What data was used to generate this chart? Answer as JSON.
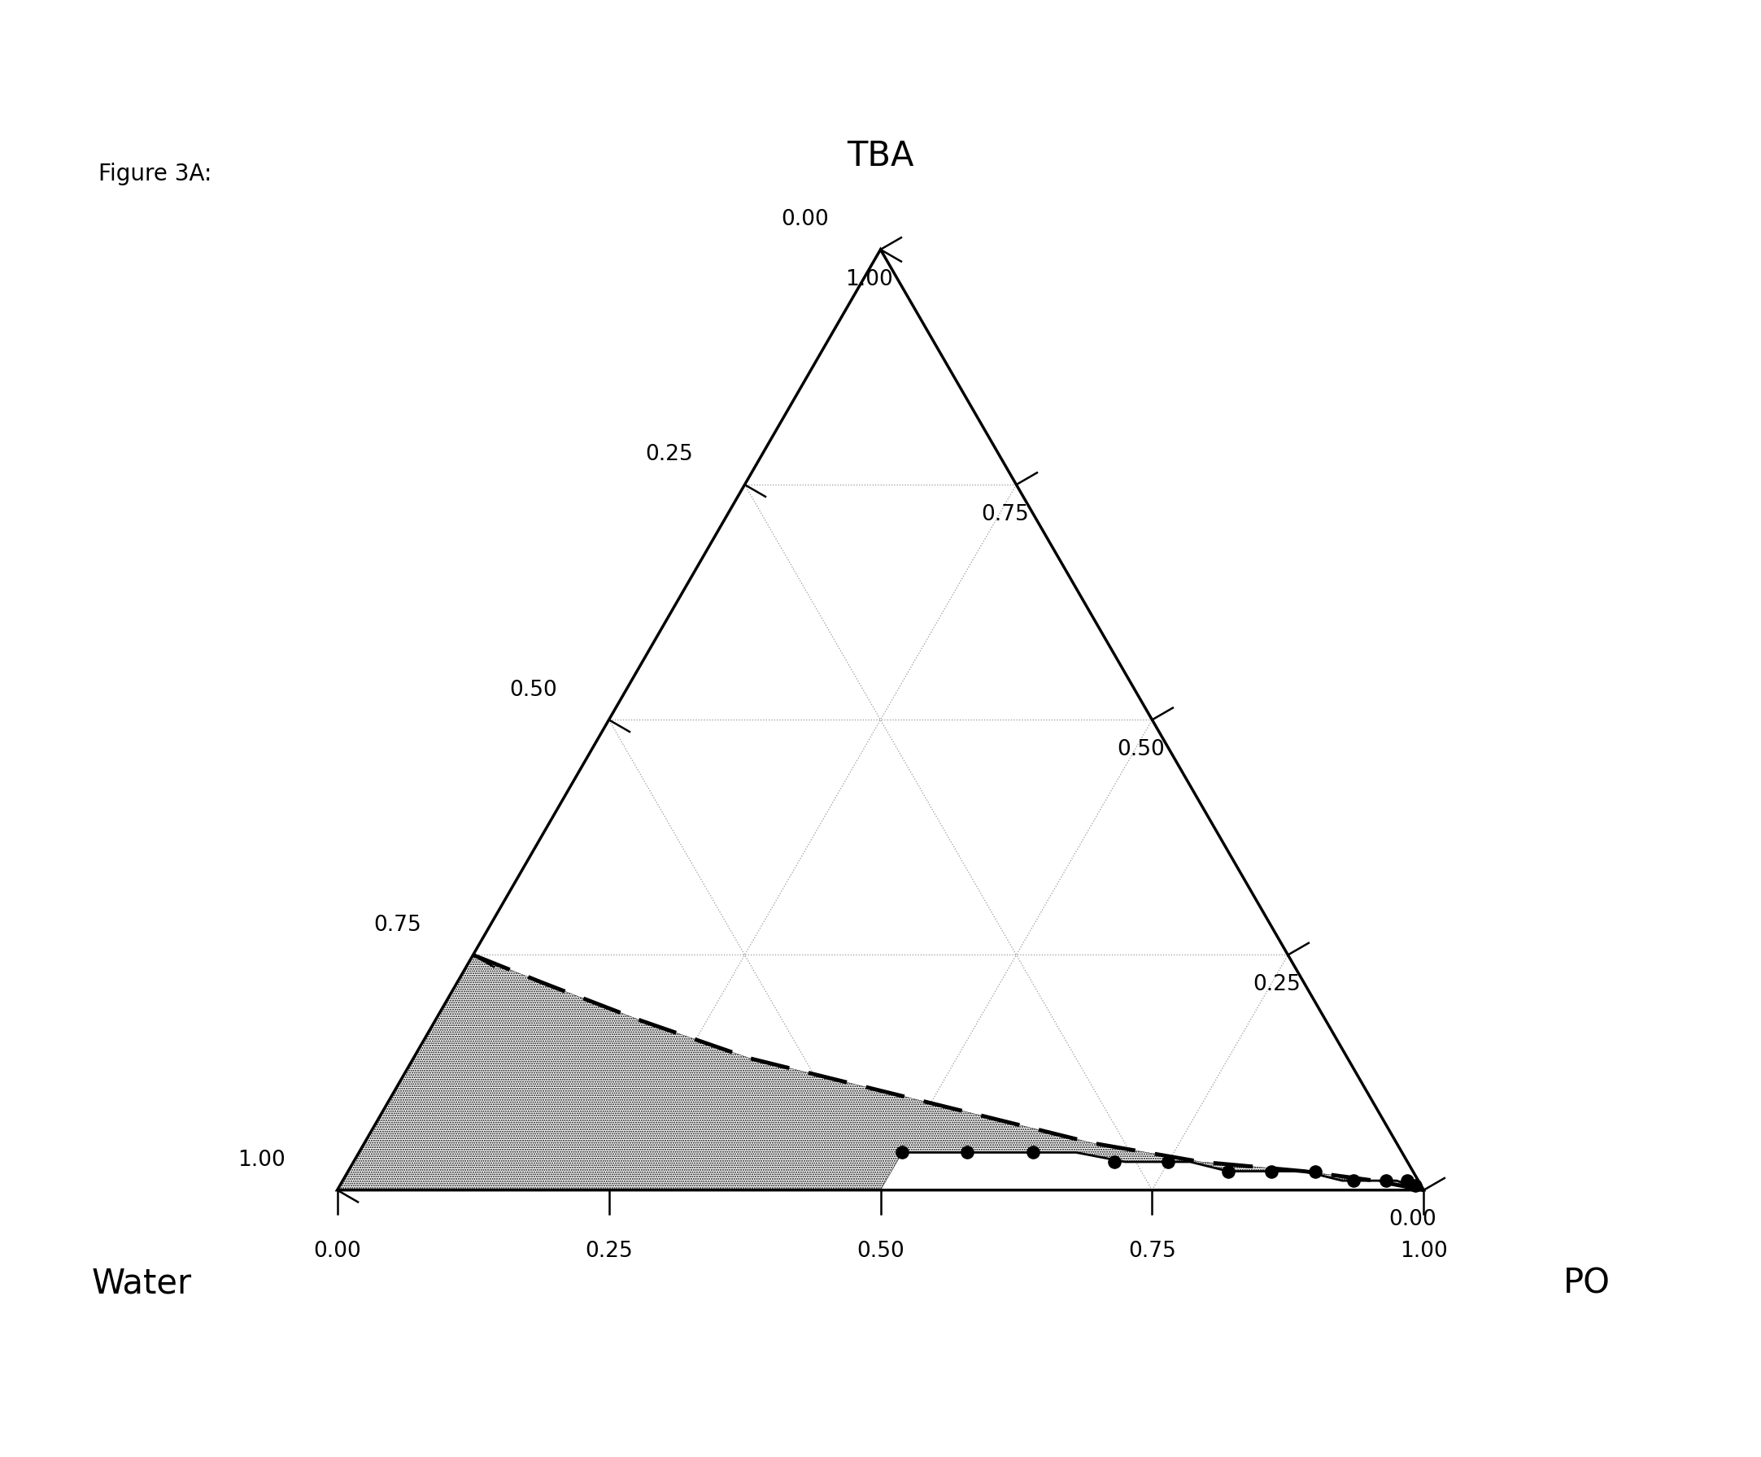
{
  "figure_label": "Figure 3A:",
  "corner_labels": {
    "top": "TBA",
    "left": "Water",
    "right": "PO"
  },
  "left_axis_ticks": [
    {
      "val": 0.0,
      "label": "0.00"
    },
    {
      "val": 0.25,
      "label": "0.25"
    },
    {
      "val": 0.5,
      "label": "0.50"
    },
    {
      "val": 0.75,
      "label": "0.75"
    },
    {
      "val": 1.0,
      "label": "1.00"
    }
  ],
  "right_axis_ticks": [
    {
      "val": 0.0,
      "label": "1.00"
    },
    {
      "val": 0.25,
      "label": "0.75"
    },
    {
      "val": 0.5,
      "label": "0.50"
    },
    {
      "val": 0.75,
      "label": "0.25"
    },
    {
      "val": 1.0,
      "label": "0.00"
    }
  ],
  "bottom_axis_ticks": [
    {
      "val": 0.0,
      "label": "0.00"
    },
    {
      "val": 0.25,
      "label": "0.25"
    },
    {
      "val": 0.5,
      "label": "0.50"
    },
    {
      "val": 0.75,
      "label": "0.75"
    },
    {
      "val": 1.0,
      "label": "1.00"
    }
  ],
  "dashed_curve_tba_water_po": [
    [
      0.25,
      0.75,
      0.0
    ],
    [
      0.22,
      0.7,
      0.08
    ],
    [
      0.18,
      0.63,
      0.19
    ],
    [
      0.14,
      0.55,
      0.31
    ],
    [
      0.11,
      0.46,
      0.43
    ],
    [
      0.08,
      0.37,
      0.55
    ],
    [
      0.05,
      0.28,
      0.67
    ],
    [
      0.03,
      0.19,
      0.78
    ],
    [
      0.02,
      0.1,
      0.88
    ],
    [
      0.01,
      0.04,
      0.95
    ],
    [
      0.0,
      0.0,
      1.0
    ]
  ],
  "solid_curve_tba_water_po": [
    [
      0.04,
      0.46,
      0.5
    ],
    [
      0.04,
      0.42,
      0.54
    ],
    [
      0.04,
      0.38,
      0.58
    ],
    [
      0.04,
      0.34,
      0.62
    ],
    [
      0.04,
      0.3,
      0.66
    ],
    [
      0.03,
      0.26,
      0.71
    ],
    [
      0.03,
      0.23,
      0.74
    ],
    [
      0.03,
      0.2,
      0.77
    ],
    [
      0.02,
      0.17,
      0.81
    ],
    [
      0.02,
      0.13,
      0.85
    ],
    [
      0.02,
      0.1,
      0.88
    ],
    [
      0.01,
      0.07,
      0.92
    ],
    [
      0.01,
      0.04,
      0.95
    ],
    [
      0.01,
      0.02,
      0.97
    ],
    [
      0.005,
      0.01,
      0.985
    ],
    [
      0.0,
      0.005,
      0.995
    ]
  ],
  "data_markers_tba_water_po": [
    [
      0.04,
      0.46,
      0.5
    ],
    [
      0.04,
      0.4,
      0.56
    ],
    [
      0.04,
      0.34,
      0.62
    ],
    [
      0.03,
      0.27,
      0.7
    ],
    [
      0.03,
      0.22,
      0.75
    ],
    [
      0.02,
      0.17,
      0.81
    ],
    [
      0.02,
      0.13,
      0.85
    ],
    [
      0.02,
      0.09,
      0.89
    ],
    [
      0.01,
      0.06,
      0.93
    ],
    [
      0.01,
      0.03,
      0.96
    ],
    [
      0.01,
      0.01,
      0.98
    ],
    [
      0.005,
      0.005,
      0.99
    ]
  ]
}
